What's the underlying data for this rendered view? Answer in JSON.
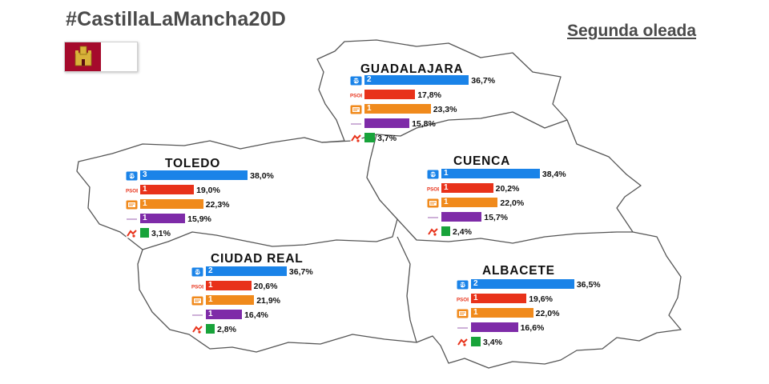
{
  "header": {
    "hashtag": "#CastillaLaMancha20D",
    "wave": "Segunda oleada"
  },
  "colors": {
    "pp": "#1a83e8",
    "psoe": "#e8321a",
    "cs": "#f08a1c",
    "podemos": "#7e2ba8",
    "iu": "#18a33a",
    "map_outline": "#555555"
  },
  "icons": [
    "pp-logo-icon",
    "psoe-logo-icon",
    "ciudadanos-logo-icon",
    "podemos-logo-icon",
    "iu-logo-icon",
    "castle-crest-icon"
  ],
  "chart_data": {
    "type": "bar",
    "title": "",
    "series_order": [
      "PP",
      "PSOE",
      "C's",
      "Podemos",
      "IU"
    ],
    "provinces": [
      {
        "name": "GUADALAJARA",
        "values": [
          36.7,
          17.8,
          23.3,
          15.8,
          3.7
        ],
        "labels": [
          "36,7%",
          "17,8%",
          "23,3%",
          "15,8%",
          "3,7%"
        ],
        "seats": [
          "2",
          "",
          "1",
          "",
          ""
        ]
      },
      {
        "name": "TOLEDO",
        "values": [
          38.0,
          19.0,
          22.3,
          15.9,
          3.1
        ],
        "labels": [
          "38,0%",
          "19,0%",
          "22,3%",
          "15,9%",
          "3,1%"
        ],
        "seats": [
          "3",
          "1",
          "1",
          "1",
          ""
        ]
      },
      {
        "name": "CUENCA",
        "values": [
          38.4,
          20.2,
          22.0,
          15.7,
          2.4
        ],
        "labels": [
          "38,4%",
          "20,2%",
          "22,0%",
          "15,7%",
          "2,4%"
        ],
        "seats": [
          "1",
          "1",
          "1",
          "",
          ""
        ]
      },
      {
        "name": "CIUDAD REAL",
        "values": [
          36.7,
          20.6,
          21.9,
          16.4,
          2.8
        ],
        "labels": [
          "36,7%",
          "20,6%",
          "21,9%",
          "16,4%",
          "2,8%"
        ],
        "seats": [
          "2",
          "1",
          "1",
          "1",
          ""
        ]
      },
      {
        "name": "ALBACETE",
        "values": [
          36.5,
          19.6,
          22.0,
          16.6,
          3.4
        ],
        "labels": [
          "36,5%",
          "19,6%",
          "22,0%",
          "16,6%",
          "3,4%"
        ],
        "seats": [
          "2",
          "1",
          "1",
          "",
          ""
        ]
      }
    ]
  }
}
